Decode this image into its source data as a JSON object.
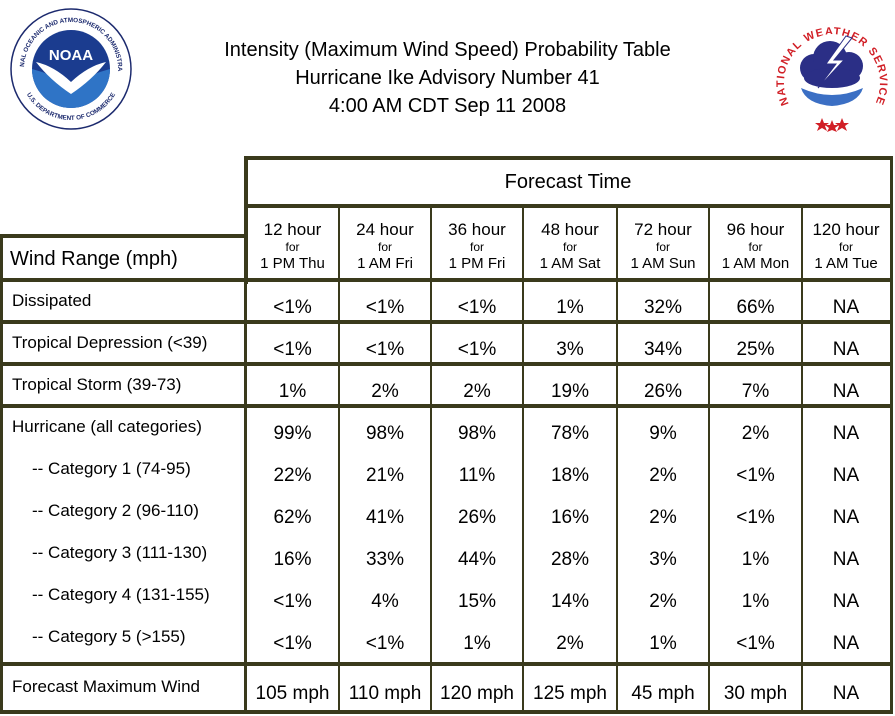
{
  "title": {
    "line1": "Intensity (Maximum Wind Speed) Probability Table",
    "line2": "Hurricane Ike Advisory Number 41",
    "line3": "4:00 AM CDT Sep 11 2008"
  },
  "logos": {
    "noaa_text": "NOAA",
    "noaa_ring": "NATIONAL OCEANIC AND ATMOSPHERIC ADMINISTRATION",
    "noaa_ring_bottom": "U.S. DEPARTMENT OF COMMERCE",
    "nws_ring": "NATIONAL WEATHER SERVICE"
  },
  "table": {
    "forecast_time_label": "Forecast Time",
    "row_header_label": "Wind Range (mph)",
    "columns": [
      {
        "hours": "12 hour",
        "for": "for",
        "time": "1 PM Thu"
      },
      {
        "hours": "24 hour",
        "for": "for",
        "time": "1 AM Fri"
      },
      {
        "hours": "36 hour",
        "for": "for",
        "time": "1 PM Fri"
      },
      {
        "hours": "48 hour",
        "for": "for",
        "time": "1 AM Sat"
      },
      {
        "hours": "72 hour",
        "for": "for",
        "time": "1 AM Sun"
      },
      {
        "hours": "96 hour",
        "for": "for",
        "time": "1 AM Mon"
      },
      {
        "hours": "120 hour",
        "for": "for",
        "time": "1 AM Tue"
      }
    ],
    "rows": [
      {
        "label": "Dissipated",
        "values": [
          "<1%",
          "<1%",
          "<1%",
          "1%",
          "32%",
          "66%",
          "NA"
        ]
      },
      {
        "label": "Tropical Depression (<39)",
        "values": [
          "<1%",
          "<1%",
          "<1%",
          "3%",
          "34%",
          "25%",
          "NA"
        ]
      },
      {
        "label": "Tropical Storm (39-73)",
        "values": [
          "1%",
          "2%",
          "2%",
          "19%",
          "26%",
          "7%",
          "NA"
        ]
      },
      {
        "label": "Hurricane (all categories)",
        "values": [
          "99%",
          "98%",
          "98%",
          "78%",
          "9%",
          "2%",
          "NA"
        ]
      },
      {
        "label": "-- Category 1 (74-95)",
        "values": [
          "22%",
          "21%",
          "11%",
          "18%",
          "2%",
          "<1%",
          "NA"
        ]
      },
      {
        "label": "-- Category 2 (96-110)",
        "values": [
          "62%",
          "41%",
          "26%",
          "16%",
          "2%",
          "<1%",
          "NA"
        ]
      },
      {
        "label": "-- Category 3 (111-130)",
        "values": [
          "16%",
          "33%",
          "44%",
          "28%",
          "3%",
          "1%",
          "NA"
        ]
      },
      {
        "label": "-- Category 4 (131-155)",
        "values": [
          "<1%",
          "4%",
          "15%",
          "14%",
          "2%",
          "1%",
          "NA"
        ]
      },
      {
        "label": "-- Category 5 (>155)",
        "values": [
          "<1%",
          "<1%",
          "1%",
          "2%",
          "1%",
          "<1%",
          "NA"
        ]
      },
      {
        "label": "Forecast Maximum Wind",
        "values": [
          "105 mph",
          "110 mph",
          "120 mph",
          "125 mph",
          "45 mph",
          "30 mph",
          "NA"
        ]
      }
    ]
  }
}
